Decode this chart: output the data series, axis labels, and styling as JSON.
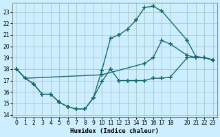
{
  "xlabel": "Humidex (Indice chaleur)",
  "bg_color": "#cceeff",
  "grid_color": "#aacccc",
  "line_color": "#1a6b6b",
  "markersize": 4,
  "linewidth": 1.0,
  "xlim": [
    -0.5,
    23.5
  ],
  "ylim": [
    13.8,
    23.8
  ],
  "xticks": [
    0,
    1,
    2,
    3,
    4,
    5,
    6,
    7,
    8,
    9,
    10,
    11,
    12,
    13,
    14,
    15,
    16,
    17,
    18,
    20,
    21,
    22,
    23
  ],
  "yticks": [
    14,
    15,
    16,
    17,
    18,
    19,
    20,
    21,
    22,
    23
  ],
  "curve1_x": [
    0,
    1,
    2,
    3,
    4,
    5,
    6,
    7,
    8,
    9,
    10,
    11,
    12,
    13,
    14,
    15,
    16,
    17,
    18,
    20,
    21,
    22,
    23
  ],
  "curve1_y": [
    18,
    17.2,
    16.7,
    15.8,
    15.8,
    15.1,
    14.7,
    14.5,
    14.5,
    15.5,
    16.9,
    18.0,
    17.0,
    17.0,
    17.0,
    17.0,
    17.2,
    17.2,
    17.3,
    19.0,
    19.0,
    19.0,
    18.8
  ],
  "curve2_x": [
    0,
    1,
    2,
    3,
    4,
    5,
    6,
    7,
    8,
    9,
    10,
    11,
    12,
    13,
    14,
    15,
    16,
    17,
    20,
    21,
    22,
    23
  ],
  "curve2_y": [
    18,
    17.2,
    16.7,
    15.8,
    15.8,
    15.1,
    14.7,
    14.5,
    14.5,
    15.5,
    17.9,
    20.7,
    21.0,
    21.5,
    22.3,
    23.4,
    23.5,
    23.1,
    20.5,
    19.1,
    19.0,
    18.8
  ],
  "curve3_x": [
    0,
    1,
    10,
    15,
    16,
    17,
    18,
    20,
    21,
    22,
    23
  ],
  "curve3_y": [
    18,
    17.2,
    17.5,
    18.5,
    19.0,
    20.5,
    20.2,
    19.2,
    19.0,
    19.0,
    18.8
  ]
}
